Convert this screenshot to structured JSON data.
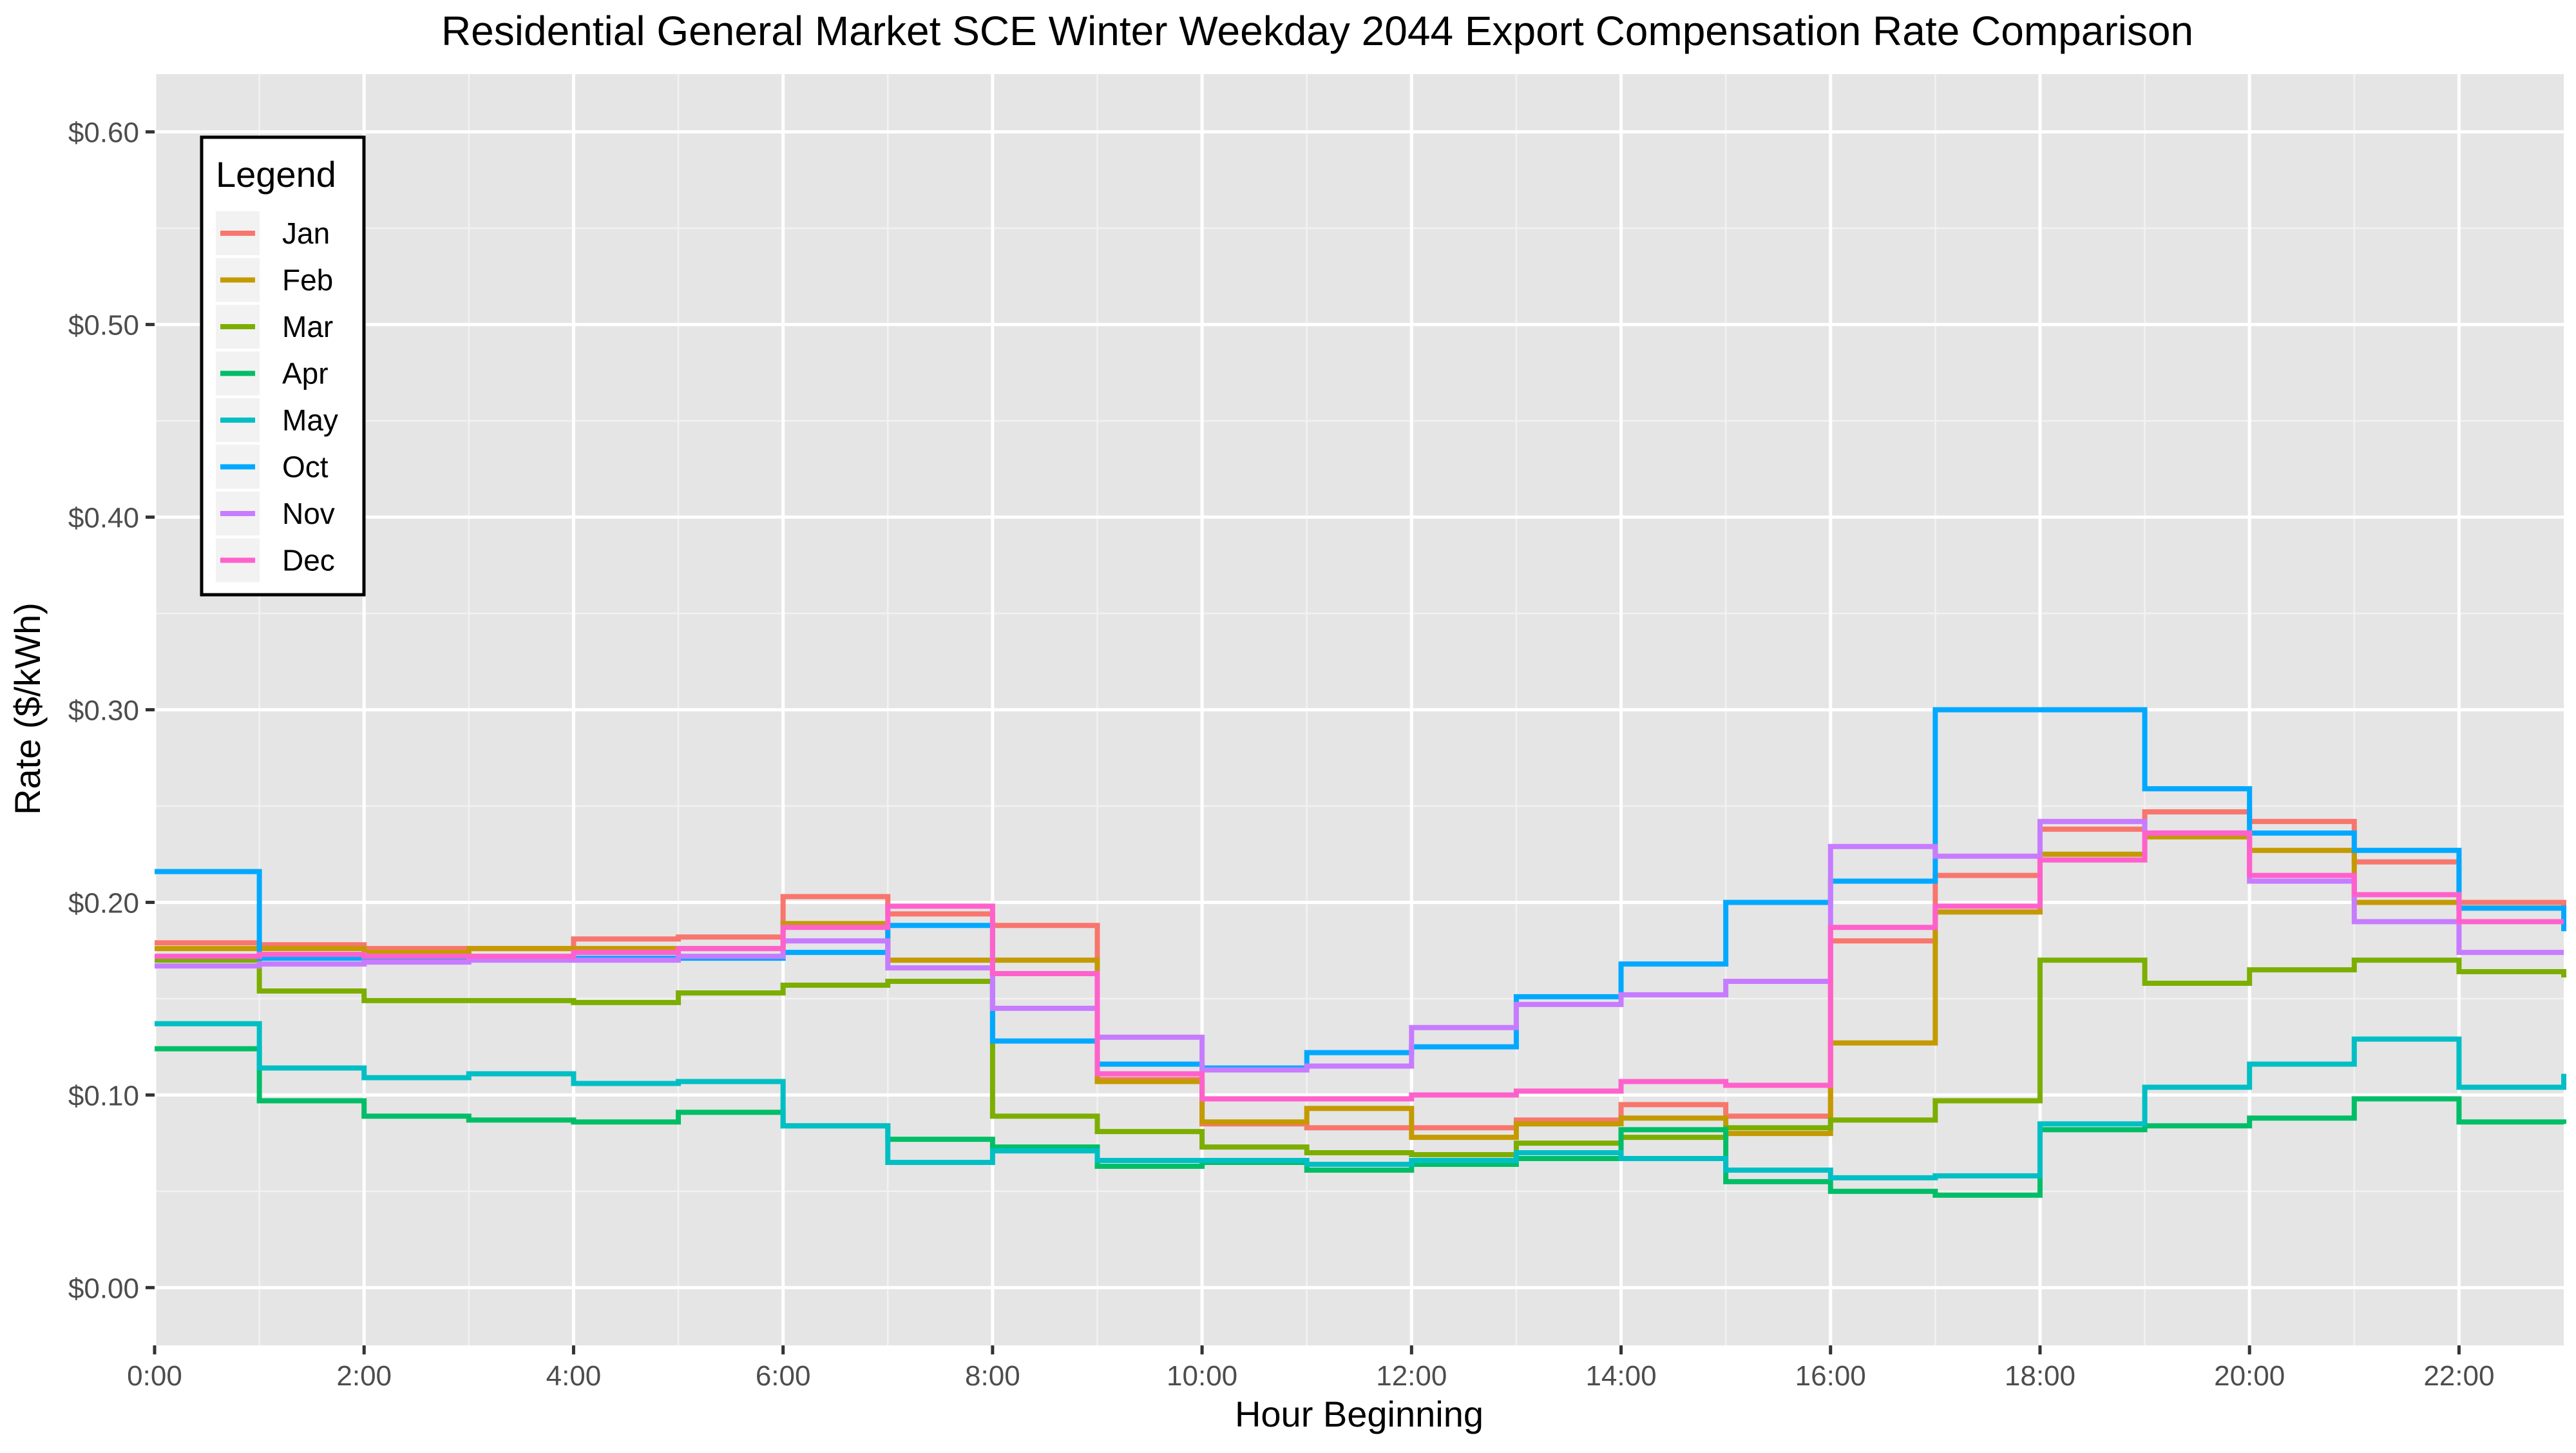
{
  "chart_data": {
    "type": "line",
    "step": "post",
    "title": "Residential General Market SCE Winter Weekday 2044 Export Compensation Rate Comparison",
    "xlabel": "Hour Beginning",
    "ylabel": "Rate ($/kWh)",
    "ylim": [
      -0.03,
      0.63
    ],
    "y_ticks": [
      0.0,
      0.1,
      0.2,
      0.3,
      0.4,
      0.5,
      0.6
    ],
    "y_tick_labels": [
      "$0.00",
      "$0.10",
      "$0.20",
      "$0.30",
      "$0.40",
      "$0.50",
      "$0.60"
    ],
    "xlim": [
      0,
      23
    ],
    "x_ticks": [
      0,
      2,
      4,
      6,
      8,
      10,
      12,
      14,
      16,
      18,
      20,
      22
    ],
    "x_tick_labels": [
      "0:00",
      "2:00",
      "4:00",
      "6:00",
      "8:00",
      "10:00",
      "12:00",
      "14:00",
      "16:00",
      "18:00",
      "20:00",
      "22:00"
    ],
    "grid": true,
    "background": "#e5e5e5",
    "legend": {
      "title": "Legend",
      "position": "top-left"
    },
    "x": [
      0,
      1,
      2,
      3,
      4,
      5,
      6,
      7,
      8,
      9,
      10,
      11,
      12,
      13,
      14,
      15,
      16,
      17,
      18,
      19,
      20,
      21,
      22,
      23
    ],
    "series": [
      {
        "name": "Jan",
        "color": "#f8766d",
        "values": [
          0.179,
          0.178,
          0.176,
          0.176,
          0.181,
          0.182,
          0.203,
          0.194,
          0.188,
          0.108,
          0.085,
          0.083,
          0.083,
          0.087,
          0.095,
          0.089,
          0.18,
          0.214,
          0.238,
          0.247,
          0.242,
          0.221,
          0.2,
          0.195
        ]
      },
      {
        "name": "Feb",
        "color": "#c49a00",
        "values": [
          0.176,
          0.176,
          0.174,
          0.176,
          0.176,
          0.176,
          0.189,
          0.17,
          0.17,
          0.107,
          0.086,
          0.093,
          0.078,
          0.085,
          0.088,
          0.08,
          0.127,
          0.195,
          0.225,
          0.234,
          0.227,
          0.2,
          0.197,
          0.191
        ]
      },
      {
        "name": "Mar",
        "color": "#7cae00",
        "values": [
          0.17,
          0.154,
          0.149,
          0.149,
          0.148,
          0.153,
          0.157,
          0.159,
          0.089,
          0.081,
          0.073,
          0.07,
          0.069,
          0.075,
          0.078,
          0.083,
          0.087,
          0.097,
          0.17,
          0.158,
          0.165,
          0.17,
          0.164,
          0.161
        ]
      },
      {
        "name": "Apr",
        "color": "#00be67",
        "values": [
          0.124,
          0.097,
          0.089,
          0.087,
          0.086,
          0.091,
          0.084,
          0.077,
          0.073,
          0.063,
          0.065,
          0.061,
          0.064,
          0.067,
          0.082,
          0.055,
          0.05,
          0.048,
          0.082,
          0.084,
          0.088,
          0.098,
          0.086,
          0.085
        ]
      },
      {
        "name": "May",
        "color": "#00bfc4",
        "values": [
          0.137,
          0.114,
          0.109,
          0.111,
          0.106,
          0.107,
          0.084,
          0.065,
          0.071,
          0.066,
          0.066,
          0.064,
          0.066,
          0.07,
          0.067,
          0.061,
          0.057,
          0.058,
          0.085,
          0.104,
          0.116,
          0.129,
          0.104,
          0.111
        ]
      },
      {
        "name": "Oct",
        "color": "#00a9ff",
        "values": [
          0.216,
          0.171,
          0.171,
          0.171,
          0.171,
          0.171,
          0.174,
          0.188,
          0.128,
          0.116,
          0.114,
          0.122,
          0.125,
          0.151,
          0.168,
          0.2,
          0.211,
          0.3,
          0.3,
          0.259,
          0.236,
          0.227,
          0.197,
          0.185
        ]
      },
      {
        "name": "Nov",
        "color": "#c77cff",
        "values": [
          0.167,
          0.168,
          0.169,
          0.17,
          0.17,
          0.172,
          0.18,
          0.166,
          0.145,
          0.13,
          0.113,
          0.115,
          0.135,
          0.147,
          0.152,
          0.159,
          0.229,
          0.224,
          0.242,
          0.236,
          0.211,
          0.19,
          0.174,
          0.174
        ]
      },
      {
        "name": "Dec",
        "color": "#ff61cc",
        "values": [
          0.172,
          0.173,
          0.172,
          0.172,
          0.174,
          0.176,
          0.187,
          0.198,
          0.163,
          0.111,
          0.098,
          0.098,
          0.1,
          0.102,
          0.107,
          0.105,
          0.187,
          0.198,
          0.222,
          0.236,
          0.214,
          0.204,
          0.19,
          0.19
        ]
      }
    ]
  }
}
